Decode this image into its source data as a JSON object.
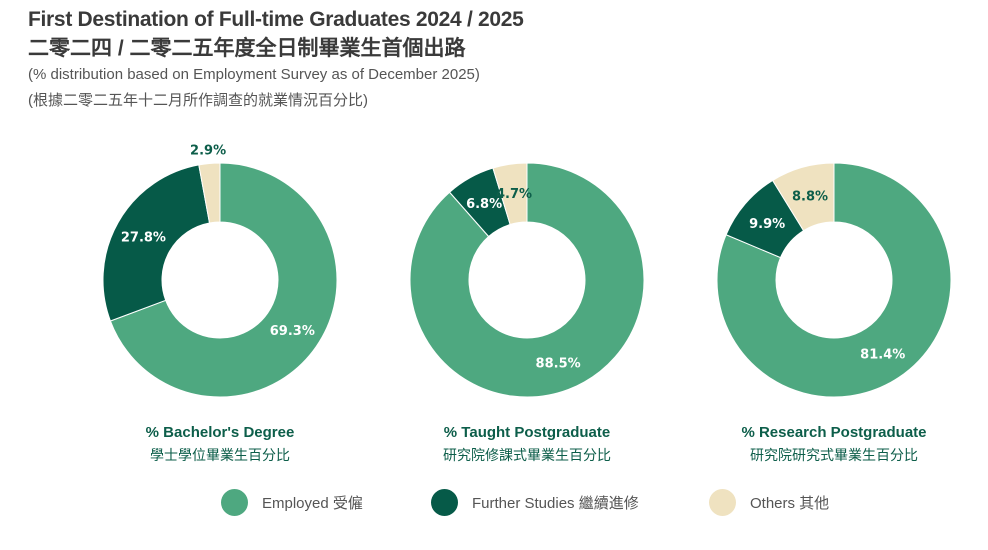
{
  "header": {
    "title_en": "First Destination of Full-time Graduates 2024 / 2025",
    "title_zh": "二零二四 / 二零二五年度全日制畢業生首個出路",
    "subtitle_en": "(% distribution based on Employment Survey as of December 2025)",
    "subtitle_zh": "(根據二零二五年十二月所作調查的就業情況百分比)"
  },
  "colors": {
    "employed": "#4ea880",
    "further": "#065a48",
    "others": "#efe2c0"
  },
  "chart_data": [
    {
      "type": "pie",
      "donut": true,
      "title": "% Bachelor's Degree",
      "title_zh": "學士學位畢業生百分比",
      "categories": [
        "Employed 受僱",
        "Further Studies 繼續進修",
        "Others 其他"
      ],
      "values": [
        69.3,
        27.8,
        2.9
      ],
      "labels": [
        "69.3%",
        "27.8%",
        "2.9%"
      ]
    },
    {
      "type": "pie",
      "donut": true,
      "title": "% Taught Postgraduate",
      "title_zh": "研究院修課式畢業生百分比",
      "categories": [
        "Employed 受僱",
        "Further Studies 繼續進修",
        "Others 其他"
      ],
      "values": [
        88.5,
        6.8,
        4.7
      ],
      "labels": [
        "88.5%",
        "6.8%",
        "4.7%"
      ]
    },
    {
      "type": "pie",
      "donut": true,
      "title": "% Research Postgraduate",
      "title_zh": "研究院研究式畢業生百分比",
      "categories": [
        "Employed 受僱",
        "Further Studies 繼續進修",
        "Others 其他"
      ],
      "values": [
        81.4,
        9.9,
        8.8
      ],
      "labels": [
        "81.4%",
        "9.9%",
        "8.8%"
      ]
    }
  ],
  "legend": [
    {
      "label": "Employed 受僱",
      "color": "#4ea880"
    },
    {
      "label": "Further Studies 繼續進修",
      "color": "#065a48"
    },
    {
      "label": "Others 其他",
      "color": "#efe2c0"
    }
  ]
}
